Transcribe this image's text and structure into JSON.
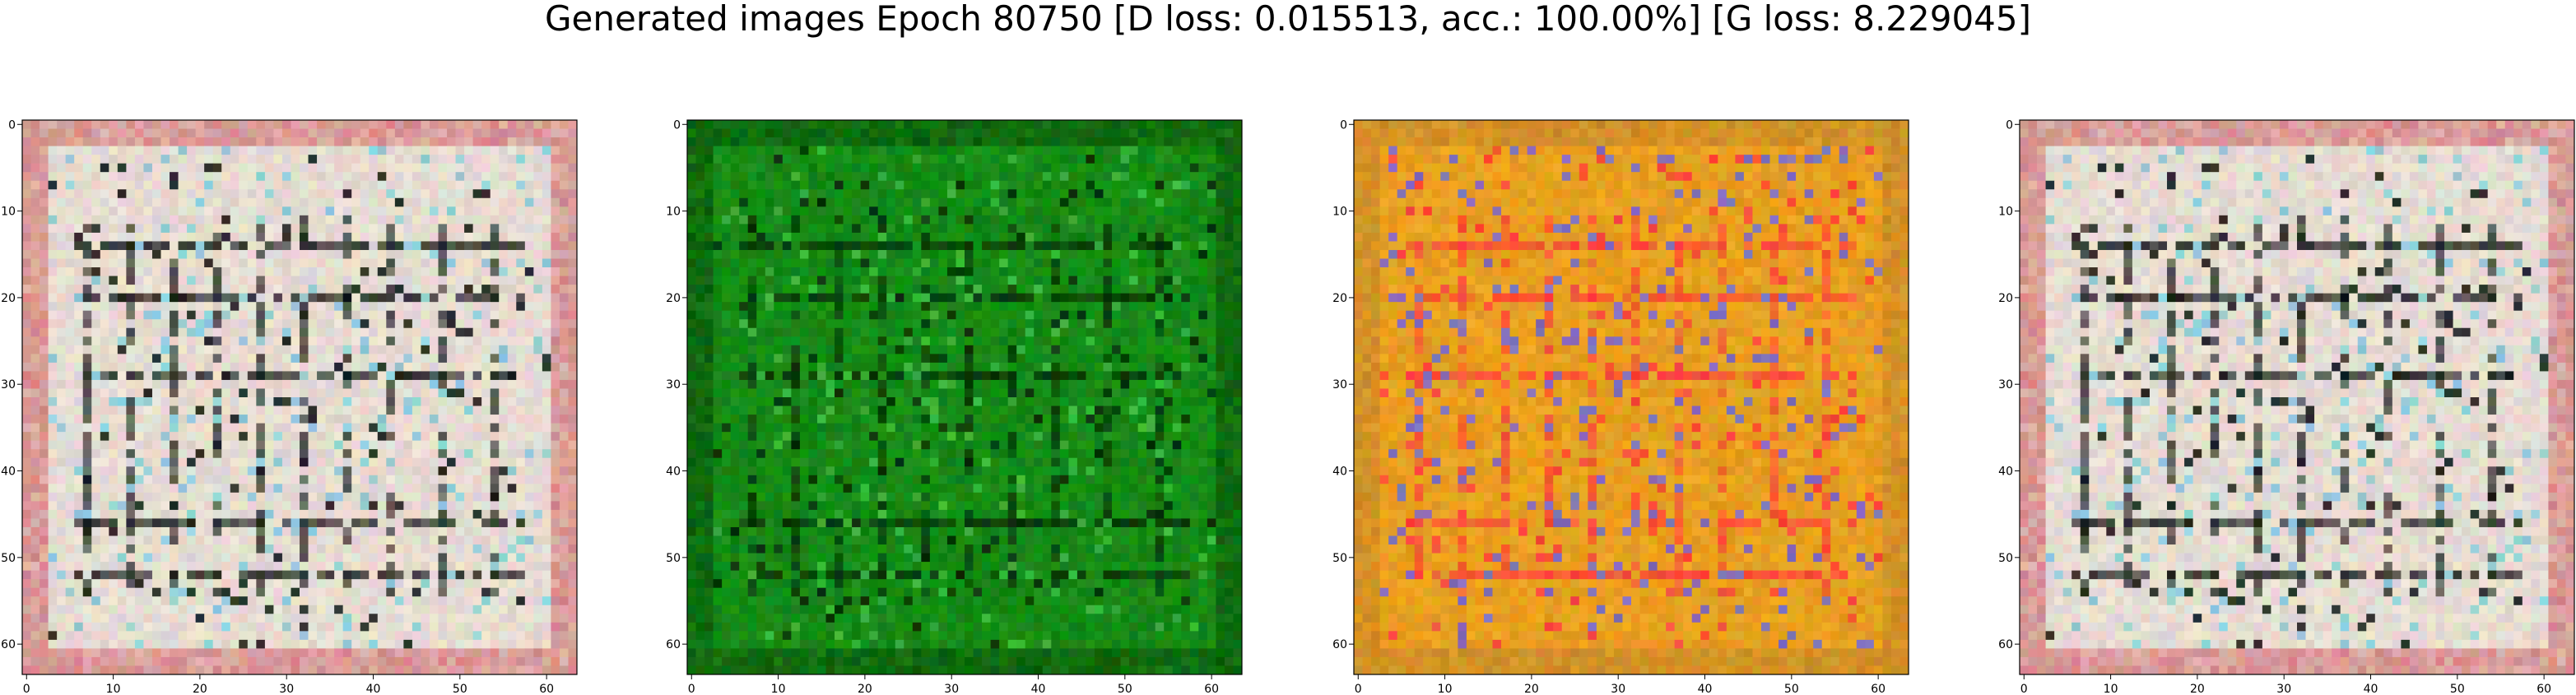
{
  "title": "Generated images Epoch 80750 [D loss: 0.015513, acc.: 100.00%] [G loss: 8.229045]",
  "chart_data": [
    {
      "type": "heatmap",
      "xlim": [
        0,
        63
      ],
      "ylim": [
        63,
        0
      ],
      "xticks": [
        "0",
        "10",
        "20",
        "30",
        "40",
        "50",
        "60"
      ],
      "yticks": [
        "0",
        "10",
        "20",
        "30",
        "40",
        "50",
        "60"
      ],
      "grid": false,
      "colors": {
        "base": "#e6dcd2",
        "ink": "#0d1410",
        "accent": "#6ec8dc",
        "edge": "#d27a7a"
      }
    },
    {
      "type": "heatmap",
      "xlim": [
        0,
        63
      ],
      "ylim": [
        63,
        0
      ],
      "xticks": [
        "0",
        "10",
        "20",
        "30",
        "40",
        "50",
        "60"
      ],
      "yticks": [
        "0",
        "10",
        "20",
        "30",
        "40",
        "50",
        "60"
      ],
      "grid": false,
      "colors": {
        "base": "#168a16",
        "ink": "#062a06",
        "accent": "#4cc44c",
        "edge": "#0c5a0c"
      }
    },
    {
      "type": "heatmap",
      "xlim": [
        0,
        63
      ],
      "ylim": [
        63,
        0
      ],
      "xticks": [
        "0",
        "10",
        "20",
        "30",
        "40",
        "50",
        "60"
      ],
      "yticks": [
        "0",
        "10",
        "20",
        "30",
        "40",
        "50",
        "60"
      ],
      "grid": false,
      "colors": {
        "base": "#e8a020",
        "ink": "#ff3c3c",
        "accent": "#5a5aff",
        "edge": "#c88a2a"
      }
    },
    {
      "type": "heatmap",
      "xlim": [
        0,
        63
      ],
      "ylim": [
        63,
        0
      ],
      "xticks": [
        "0",
        "10",
        "20",
        "30",
        "40",
        "50",
        "60"
      ],
      "yticks": [
        "0",
        "10",
        "20",
        "30",
        "40",
        "50",
        "60"
      ],
      "grid": false,
      "colors": {
        "base": "#e6dcd2",
        "ink": "#0d1410",
        "accent": "#6ec8dc",
        "edge": "#d27a7a"
      }
    }
  ]
}
